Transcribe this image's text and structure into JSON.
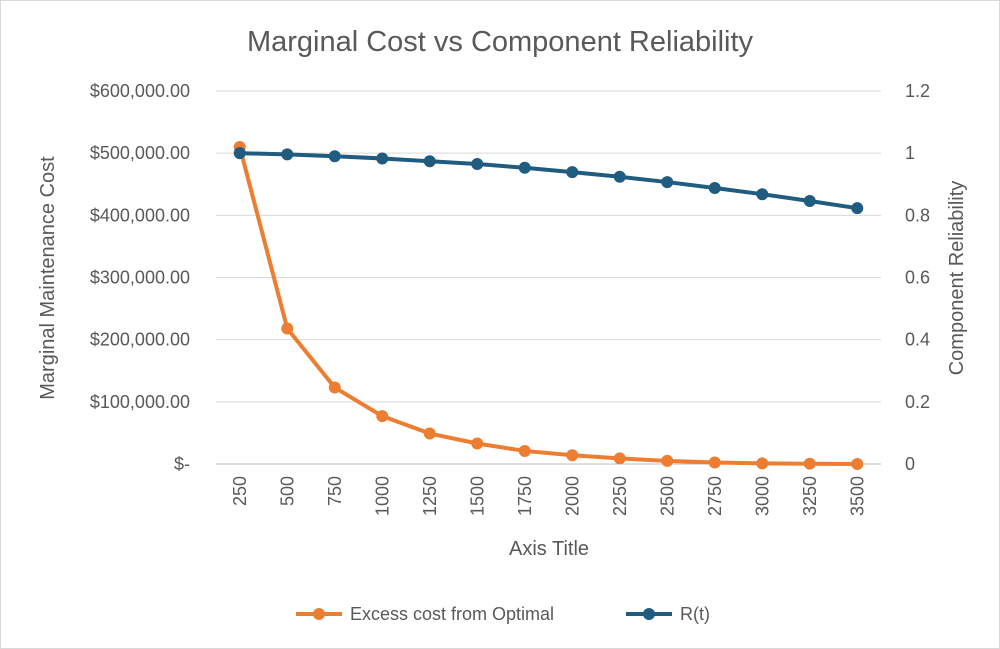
{
  "chart_data": {
    "type": "line",
    "title": "Marginal Cost vs Component Reliability",
    "xlabel": "Axis Title",
    "ylabel": "Marginal Maintenance Cost",
    "y2label": "Component Reliability",
    "categories": [
      "250",
      "500",
      "750",
      "1000",
      "1250",
      "1500",
      "1750",
      "2000",
      "2250",
      "2500",
      "2750",
      "3000",
      "3250",
      "3500"
    ],
    "ylim": [
      0,
      600000
    ],
    "y2lim": [
      0,
      1.2
    ],
    "y_ticks": [
      {
        "value": 0,
        "label": "$-"
      },
      {
        "value": 100000,
        "label": "$100,000.00"
      },
      {
        "value": 200000,
        "label": "$200,000.00"
      },
      {
        "value": 300000,
        "label": "$300,000.00"
      },
      {
        "value": 400000,
        "label": "$400,000.00"
      },
      {
        "value": 500000,
        "label": "$500,000.00"
      },
      {
        "value": 600000,
        "label": "$600,000.00"
      }
    ],
    "y2_ticks": [
      {
        "value": 0,
        "label": "0"
      },
      {
        "value": 0.2,
        "label": "0.2"
      },
      {
        "value": 0.4,
        "label": "0.4"
      },
      {
        "value": 0.6,
        "label": "0.6"
      },
      {
        "value": 0.8,
        "label": "0.8"
      },
      {
        "value": 1,
        "label": "1"
      },
      {
        "value": 1.2,
        "label": "1.2"
      }
    ],
    "series": [
      {
        "name": "Excess cost from Optimal",
        "axis": "left",
        "color": "#ED7D31",
        "values": [
          510000,
          218000,
          123000,
          77000,
          49000,
          33000,
          21000,
          14000,
          9000,
          5000,
          2500,
          1000,
          500,
          0
        ]
      },
      {
        "name": "R(t)",
        "axis": "right",
        "color": "#1F5C80",
        "values": [
          1.0,
          0.996,
          0.99,
          0.983,
          0.974,
          0.965,
          0.953,
          0.939,
          0.924,
          0.907,
          0.888,
          0.868,
          0.846,
          0.823
        ]
      }
    ],
    "grid": true,
    "legend": "bottom"
  }
}
